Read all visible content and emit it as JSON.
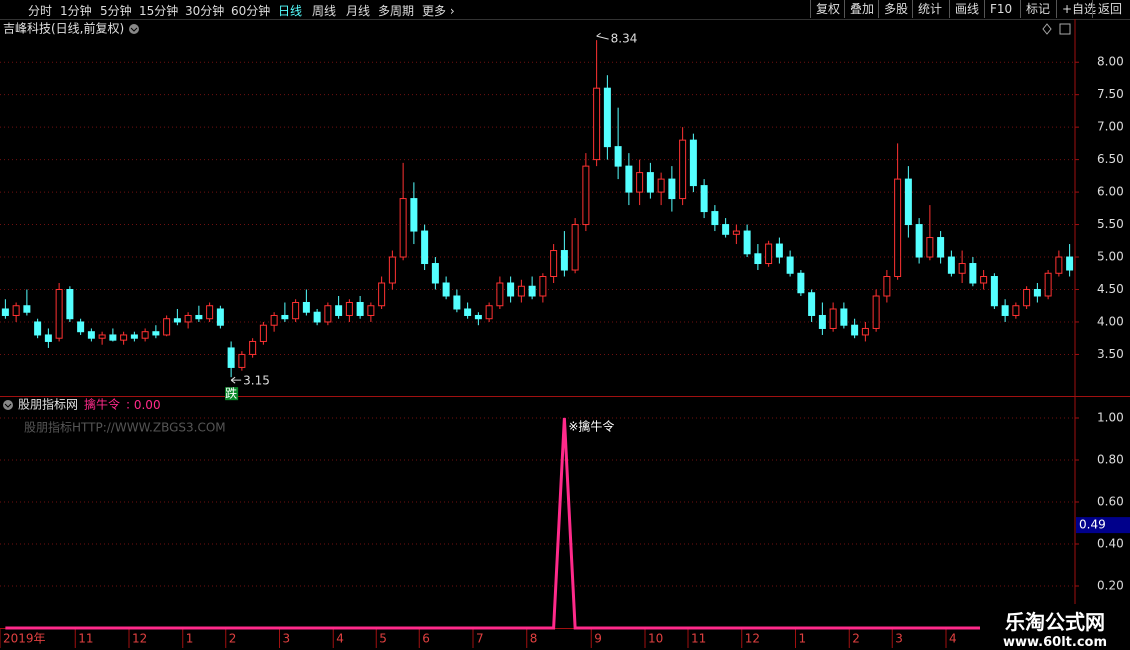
{
  "toolbar": {
    "left": [
      "分时",
      "1分钟",
      "5分钟",
      "15分钟",
      "30分钟",
      "60分钟",
      "日线",
      "周线",
      "月线",
      "多周期",
      "更多"
    ],
    "active_index": 6,
    "right": [
      "复权",
      "叠加",
      "多股",
      "统计",
      "画线",
      "F10",
      "标记",
      "+自选",
      "返回"
    ]
  },
  "chart_data": {
    "type": "candlestick",
    "title": "吉峰科技(日线,前复权)",
    "up_color": "#ff3232",
    "down_color": "#54ffff",
    "grid": true,
    "ylim": [
      2.86,
      8.65
    ],
    "yticks": [
      {
        "value": 3.5,
        "label": "3.50"
      },
      {
        "value": 4,
        "label": "4.00"
      },
      {
        "value": 4.5,
        "label": "4.50"
      },
      {
        "value": 5,
        "label": "5.00"
      },
      {
        "value": 5.5,
        "label": "5.50"
      },
      {
        "value": 6,
        "label": "6.00"
      },
      {
        "value": 6.5,
        "label": "6.50"
      },
      {
        "value": 7,
        "label": "7.00"
      },
      {
        "value": 7.5,
        "label": "7.50"
      },
      {
        "value": 8,
        "label": "8.00"
      }
    ],
    "categories": [
      "2019年",
      null,
      null,
      null,
      null,
      null,
      null,
      "11",
      null,
      null,
      null,
      null,
      "12",
      null,
      null,
      null,
      null,
      "1",
      null,
      null,
      null,
      "2",
      null,
      null,
      null,
      null,
      "3",
      null,
      null,
      null,
      null,
      "4",
      null,
      null,
      null,
      "5",
      null,
      null,
      null,
      "6",
      null,
      null,
      null,
      null,
      "7",
      null,
      null,
      null,
      null,
      "8",
      null,
      null,
      null,
      null,
      null,
      "9",
      null,
      null,
      null,
      null,
      "10",
      null,
      null,
      null,
      "11",
      null,
      null,
      null,
      null,
      "12",
      null,
      null,
      null,
      null,
      "1",
      null,
      null,
      null,
      null,
      "2",
      null,
      null,
      null,
      "3",
      null,
      null,
      null,
      null,
      "4",
      null,
      null,
      null,
      null,
      null,
      null,
      null,
      null,
      null,
      null,
      null
    ],
    "candles": [
      [
        4.2,
        4.35,
        4.05,
        4.1
      ],
      [
        4.1,
        4.3,
        4.0,
        4.25
      ],
      [
        4.25,
        4.5,
        4.1,
        4.15
      ],
      [
        4.0,
        4.05,
        3.75,
        3.8
      ],
      [
        3.8,
        3.9,
        3.6,
        3.7
      ],
      [
        3.75,
        4.6,
        3.7,
        4.5
      ],
      [
        4.5,
        4.55,
        4.0,
        4.05
      ],
      [
        4.0,
        4.05,
        3.8,
        3.85
      ],
      [
        3.85,
        3.9,
        3.7,
        3.75
      ],
      [
        3.75,
        3.85,
        3.65,
        3.8
      ],
      [
        3.8,
        3.9,
        3.7,
        3.72
      ],
      [
        3.72,
        3.85,
        3.65,
        3.8
      ],
      [
        3.8,
        3.85,
        3.7,
        3.75
      ],
      [
        3.75,
        3.9,
        3.7,
        3.85
      ],
      [
        3.85,
        3.95,
        3.75,
        3.8
      ],
      [
        3.8,
        4.1,
        3.78,
        4.05
      ],
      [
        4.05,
        4.2,
        3.95,
        4.0
      ],
      [
        4.0,
        4.15,
        3.9,
        4.1
      ],
      [
        4.1,
        4.25,
        4.0,
        4.05
      ],
      [
        4.05,
        4.3,
        4.0,
        4.25
      ],
      [
        4.2,
        4.25,
        3.9,
        3.95
      ],
      [
        3.6,
        3.7,
        3.15,
        3.3
      ],
      [
        3.3,
        3.55,
        3.25,
        3.5
      ],
      [
        3.5,
        3.75,
        3.45,
        3.7
      ],
      [
        3.7,
        4.0,
        3.65,
        3.95
      ],
      [
        3.95,
        4.15,
        3.85,
        4.1
      ],
      [
        4.1,
        4.3,
        4.0,
        4.05
      ],
      [
        4.05,
        4.35,
        4.0,
        4.3
      ],
      [
        4.3,
        4.5,
        4.1,
        4.15
      ],
      [
        4.15,
        4.2,
        3.95,
        4.0
      ],
      [
        4.0,
        4.3,
        3.95,
        4.25
      ],
      [
        4.25,
        4.4,
        4.05,
        4.1
      ],
      [
        4.1,
        4.35,
        4.0,
        4.3
      ],
      [
        4.3,
        4.4,
        4.05,
        4.1
      ],
      [
        4.1,
        4.3,
        4.0,
        4.25
      ],
      [
        4.25,
        4.7,
        4.2,
        4.6
      ],
      [
        4.6,
        5.1,
        4.5,
        5.0
      ],
      [
        5.0,
        6.45,
        4.95,
        5.9
      ],
      [
        5.9,
        6.15,
        5.2,
        5.4
      ],
      [
        5.4,
        5.5,
        4.8,
        4.9
      ],
      [
        4.9,
        5.0,
        4.5,
        4.6
      ],
      [
        4.6,
        4.7,
        4.35,
        4.4
      ],
      [
        4.4,
        4.5,
        4.15,
        4.2
      ],
      [
        4.2,
        4.3,
        4.05,
        4.1
      ],
      [
        4.1,
        4.15,
        3.95,
        4.05
      ],
      [
        4.05,
        4.3,
        4.0,
        4.25
      ],
      [
        4.25,
        4.7,
        4.2,
        4.6
      ],
      [
        4.6,
        4.7,
        4.3,
        4.4
      ],
      [
        4.4,
        4.65,
        4.3,
        4.55
      ],
      [
        4.55,
        4.7,
        4.35,
        4.4
      ],
      [
        4.4,
        4.75,
        4.3,
        4.7
      ],
      [
        4.7,
        5.2,
        4.6,
        5.1
      ],
      [
        5.1,
        5.4,
        4.7,
        4.8
      ],
      [
        4.8,
        5.6,
        4.75,
        5.5
      ],
      [
        5.5,
        6.6,
        5.4,
        6.4
      ],
      [
        6.5,
        8.34,
        6.4,
        7.6
      ],
      [
        7.6,
        7.8,
        6.5,
        6.7
      ],
      [
        6.7,
        7.3,
        6.2,
        6.4
      ],
      [
        6.4,
        6.6,
        5.8,
        6.0
      ],
      [
        6.0,
        6.5,
        5.8,
        6.3
      ],
      [
        6.3,
        6.45,
        5.9,
        6.0
      ],
      [
        6.0,
        6.3,
        5.8,
        6.2
      ],
      [
        6.2,
        6.4,
        5.7,
        5.9
      ],
      [
        5.9,
        7.0,
        5.8,
        6.8
      ],
      [
        6.8,
        6.9,
        6.0,
        6.1
      ],
      [
        6.1,
        6.2,
        5.6,
        5.7
      ],
      [
        5.7,
        5.8,
        5.4,
        5.5
      ],
      [
        5.5,
        5.6,
        5.3,
        5.35
      ],
      [
        5.35,
        5.5,
        5.2,
        5.4
      ],
      [
        5.4,
        5.5,
        5.0,
        5.05
      ],
      [
        5.05,
        5.2,
        4.8,
        4.9
      ],
      [
        4.9,
        5.25,
        4.85,
        5.2
      ],
      [
        5.2,
        5.3,
        4.9,
        5.0
      ],
      [
        5.0,
        5.1,
        4.7,
        4.75
      ],
      [
        4.75,
        4.8,
        4.4,
        4.45
      ],
      [
        4.45,
        4.5,
        4.0,
        4.1
      ],
      [
        4.1,
        4.3,
        3.8,
        3.9
      ],
      [
        3.9,
        4.3,
        3.85,
        4.2
      ],
      [
        4.2,
        4.3,
        3.9,
        3.95
      ],
      [
        3.95,
        4.05,
        3.75,
        3.8
      ],
      [
        3.8,
        4.0,
        3.7,
        3.9
      ],
      [
        3.9,
        4.5,
        3.85,
        4.4
      ],
      [
        4.4,
        4.8,
        4.3,
        4.7
      ],
      [
        4.7,
        6.75,
        4.65,
        6.2
      ],
      [
        6.2,
        6.4,
        5.3,
        5.5
      ],
      [
        5.5,
        5.6,
        4.9,
        5.0
      ],
      [
        5.0,
        5.8,
        4.95,
        5.3
      ],
      [
        5.3,
        5.4,
        4.9,
        5.0
      ],
      [
        5.0,
        5.1,
        4.7,
        4.75
      ],
      [
        4.75,
        5.1,
        4.6,
        4.9
      ],
      [
        4.9,
        5.0,
        4.55,
        4.6
      ],
      [
        4.6,
        4.8,
        4.5,
        4.7
      ],
      [
        4.7,
        4.75,
        4.2,
        4.25
      ],
      [
        4.25,
        4.35,
        4.0,
        4.1
      ],
      [
        4.1,
        4.3,
        4.05,
        4.25
      ],
      [
        4.25,
        4.55,
        4.2,
        4.5
      ],
      [
        4.5,
        4.6,
        4.3,
        4.4
      ],
      [
        4.4,
        4.8,
        4.35,
        4.75
      ],
      [
        4.75,
        5.1,
        4.7,
        5.0
      ],
      [
        5.0,
        5.2,
        4.7,
        4.8
      ]
    ],
    "low_marker": "跌",
    "indicator": {
      "type": "line",
      "site": "股朋指标网",
      "name": "擒牛令",
      "readout": {
        "value": 0,
        "label": "0.00"
      },
      "color": "#ff2a8a",
      "watermark": "股朋指标HTTP://WWW.ZBGS3.COM",
      "signal_label": "※擒牛令",
      "ylim": [
        0,
        1.1
      ],
      "yticks": [
        {
          "value": 0.2,
          "label": "0.20"
        },
        {
          "value": 0.4,
          "label": "0.40"
        },
        {
          "value": 0.6,
          "label": "0.60"
        },
        {
          "value": 0.8,
          "label": "0.80"
        },
        {
          "value": 1,
          "label": "1.00"
        }
      ],
      "cursor_value": 0.49,
      "values": [
        0,
        0,
        0,
        0,
        0,
        0,
        0,
        0,
        0,
        0,
        0,
        0,
        0,
        0,
        0,
        0,
        0,
        0,
        0,
        0,
        0,
        0,
        0,
        0,
        0,
        0,
        0,
        0,
        0,
        0,
        0,
        0,
        0,
        0,
        0,
        0,
        0,
        0,
        0,
        0,
        0,
        0,
        0,
        0,
        0,
        0,
        0,
        0,
        0,
        0,
        0,
        0,
        1,
        0,
        0,
        0,
        0,
        0,
        0,
        0,
        0,
        0,
        0,
        0,
        0,
        0,
        0,
        0,
        0,
        0,
        0,
        0,
        0,
        0,
        0,
        0,
        0,
        0,
        0,
        0,
        0,
        0,
        0,
        0,
        0,
        0,
        0,
        0,
        0,
        0,
        0,
        0,
        0,
        0,
        0,
        0,
        0,
        0,
        0,
        0
      ]
    }
  },
  "watermark": {
    "title": "乐淘公式网",
    "url": "www.60lt.com"
  }
}
